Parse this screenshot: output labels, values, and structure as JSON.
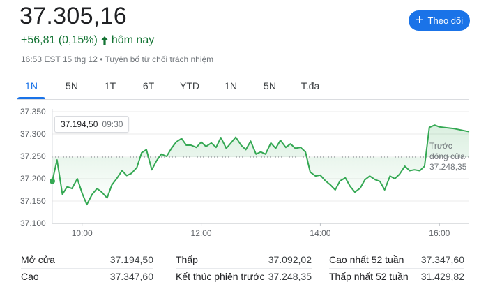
{
  "quote": {
    "price": "37.305,16",
    "change": "+56,81 (0,15%)",
    "change_suffix": "hôm nay",
    "meta": "16:53 EST 15 thg 12 • Tuyên bố từ chối trách nhiệm"
  },
  "follow_button": {
    "label": "Theo dõi"
  },
  "tabs": [
    {
      "label": "1N",
      "active": true
    },
    {
      "label": "5N",
      "active": false
    },
    {
      "label": "1T",
      "active": false
    },
    {
      "label": "6T",
      "active": false
    },
    {
      "label": "YTD",
      "active": false
    },
    {
      "label": "1N",
      "active": false
    },
    {
      "label": "5N",
      "active": false
    },
    {
      "label": "T.đa",
      "active": false
    }
  ],
  "tooltip": {
    "value": "37.194,50",
    "time": "09:30"
  },
  "previous_close": {
    "line1": "Trước",
    "line2": "đóng cửa",
    "value": "37.248,35"
  },
  "colors": {
    "up": "#137333",
    "line": "#34a853",
    "accent": "#1a73e8"
  },
  "chart_data": {
    "type": "area",
    "y_tick_labels": [
      "37.350",
      "37.300",
      "37.250",
      "37.200",
      "37.150",
      "37.100"
    ],
    "y_ticks": [
      37350,
      37300,
      37250,
      37200,
      37150,
      37100
    ],
    "ylim": [
      37100,
      37350
    ],
    "x_tick_labels": [
      "10:00",
      "12:00",
      "14:00",
      "16:00"
    ],
    "x_ticks": [
      10,
      12,
      14,
      16
    ],
    "xlim": [
      9.5,
      16.5
    ],
    "previous_close": 37248.35,
    "grid": "horizontal",
    "series": [
      {
        "x": [
          9.5,
          9.58,
          9.67,
          9.75,
          9.83,
          9.92,
          10.0,
          10.08,
          10.17,
          10.25,
          10.33,
          10.42,
          10.5,
          10.58,
          10.67,
          10.75,
          10.83,
          10.92,
          11.0,
          11.08,
          11.17,
          11.25,
          11.33,
          11.42,
          11.5,
          11.58,
          11.67,
          11.75,
          11.83,
          11.92,
          12.0,
          12.08,
          12.17,
          12.25,
          12.33,
          12.42,
          12.5,
          12.58,
          12.67,
          12.75,
          12.83,
          12.92,
          13.0,
          13.08,
          13.17,
          13.25,
          13.33,
          13.42,
          13.5,
          13.58,
          13.67,
          13.75,
          13.83,
          13.92,
          14.0,
          14.08,
          14.17,
          14.25,
          14.33,
          14.42,
          14.5,
          14.58,
          14.67,
          14.75,
          14.83,
          14.92,
          15.0,
          15.08,
          15.17,
          15.25,
          15.33,
          15.42,
          15.5,
          15.58,
          15.67,
          15.75,
          15.83,
          15.92,
          16.0,
          16.25,
          16.5
        ],
        "values": [
          37194.5,
          37242,
          37165,
          37182,
          37178,
          37200,
          37168,
          37142,
          37165,
          37178,
          37170,
          37157,
          37186,
          37200,
          37218,
          37207,
          37212,
          37225,
          37258,
          37265,
          37220,
          37240,
          37255,
          37250,
          37268,
          37282,
          37290,
          37275,
          37275,
          37270,
          37282,
          37272,
          37280,
          37270,
          37292,
          37268,
          37280,
          37293,
          37275,
          37265,
          37284,
          37255,
          37260,
          37255,
          37280,
          37268,
          37286,
          37270,
          37278,
          37268,
          37270,
          37260,
          37215,
          37206,
          37208,
          37196,
          37186,
          37175,
          37195,
          37202,
          37183,
          37170,
          37179,
          37198,
          37206,
          37198,
          37194,
          37175,
          37206,
          37200,
          37210,
          37228,
          37218,
          37220,
          37218,
          37228,
          37315,
          37320,
          37316,
          37312,
          37305.16
        ]
      }
    ]
  },
  "stats": {
    "col1": [
      {
        "label": "Mở cửa",
        "value": "37.194,50"
      },
      {
        "label": "Cao",
        "value": "37.347,60"
      }
    ],
    "col2": [
      {
        "label": "Thấp",
        "value": "37.092,02"
      },
      {
        "label": "Kết thúc phiên trước",
        "value": "37.248,35"
      }
    ],
    "col3": [
      {
        "label": "Cao nhất 52 tuần",
        "value": "37.347,60"
      },
      {
        "label": "Thấp nhất 52 tuần",
        "value": "31.429,82"
      }
    ]
  }
}
